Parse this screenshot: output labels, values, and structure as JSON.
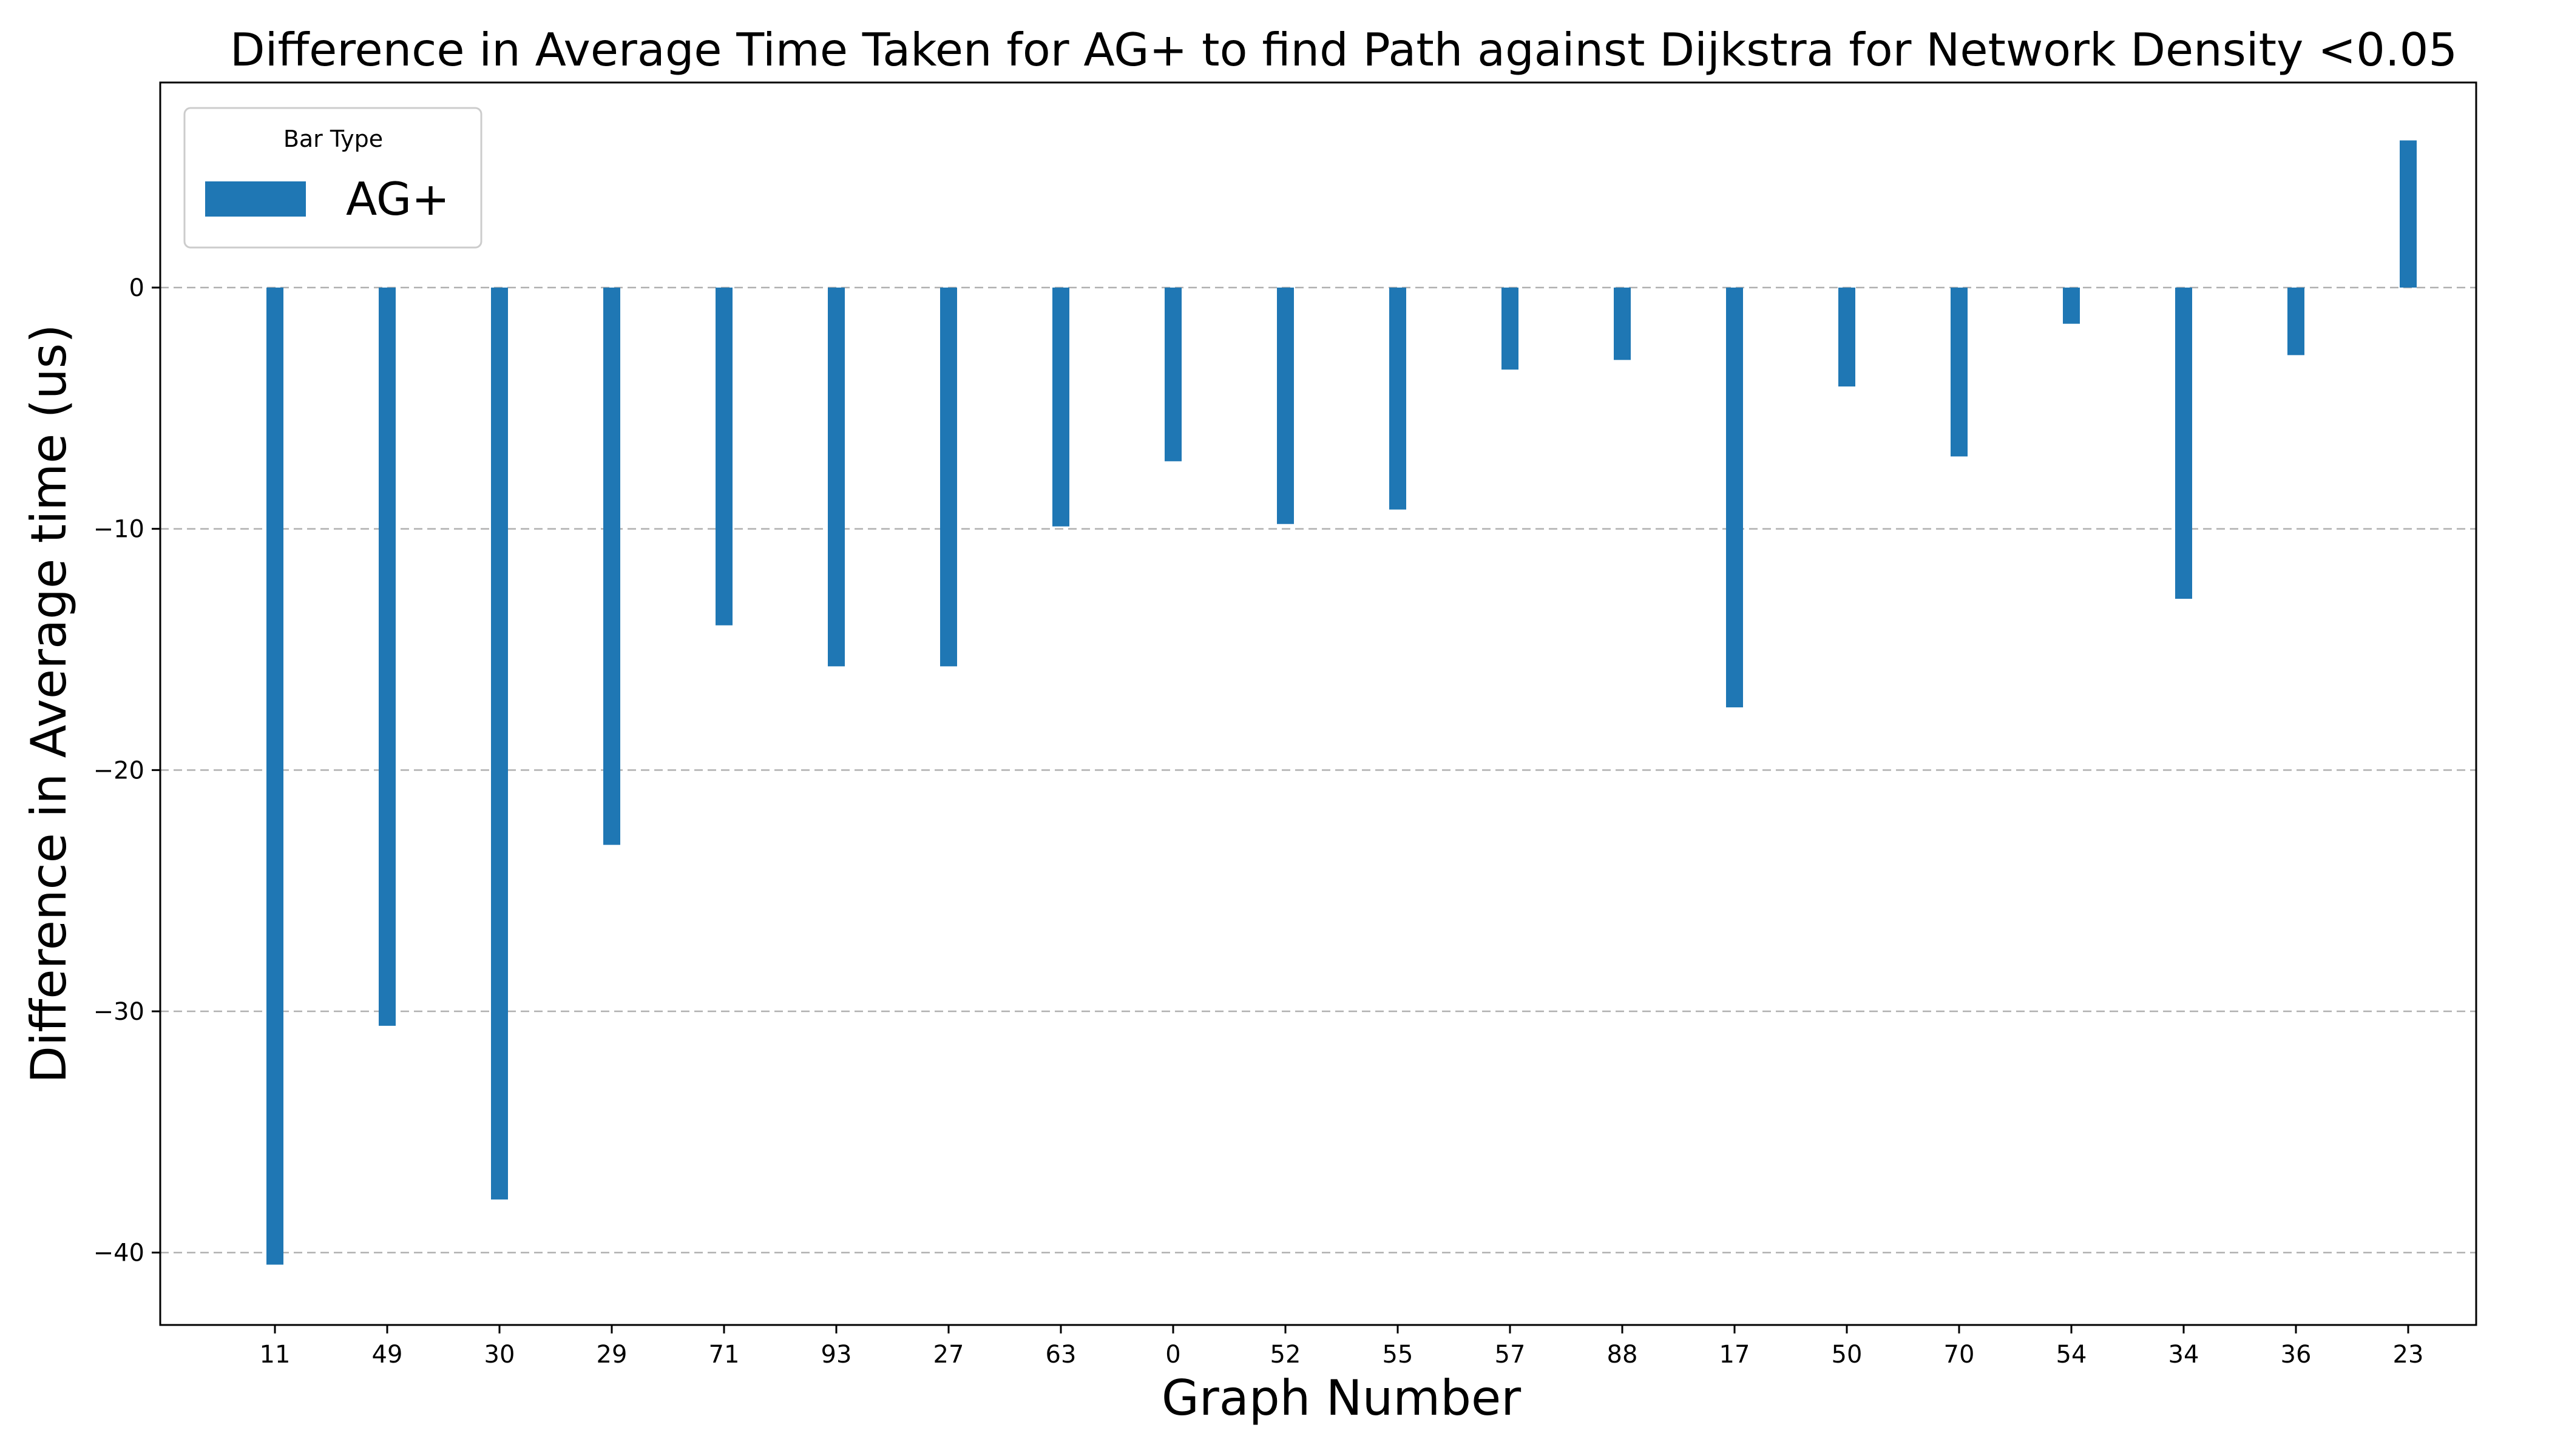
{
  "chart_data": {
    "type": "bar",
    "title": "Difference in Average Time Taken for AG+ to find Path against Dijkstra for Network Density <0.05",
    "xlabel": "Graph Number",
    "ylabel": "Difference in Average time (us)",
    "categories": [
      "11",
      "49",
      "30",
      "29",
      "71",
      "93",
      "27",
      "63",
      "0",
      "52",
      "55",
      "57",
      "88",
      "17",
      "50",
      "70",
      "54",
      "34",
      "36",
      "23"
    ],
    "series": [
      {
        "name": "AG+",
        "color": "#1f77b4",
        "values": [
          -40.5,
          -30.6,
          -37.8,
          -23.1,
          -14.0,
          -15.7,
          -15.7,
          -9.9,
          -7.2,
          -9.8,
          -9.2,
          -3.4,
          -3.0,
          -17.4,
          -4.1,
          -7.0,
          -1.5,
          -12.9,
          -2.8,
          6.1
        ]
      }
    ],
    "ylim": [
      -43,
      8.5
    ],
    "yticks": [
      0,
      -10,
      -20,
      -30,
      -40
    ],
    "ytick_labels": [
      "0",
      "−10",
      "−20",
      "−30",
      "−40"
    ],
    "grid": {
      "axis": "y",
      "style": "dashed",
      "color": "#b0b0b0"
    },
    "legend": {
      "title": "Bar Type",
      "placement": "top-left"
    }
  }
}
